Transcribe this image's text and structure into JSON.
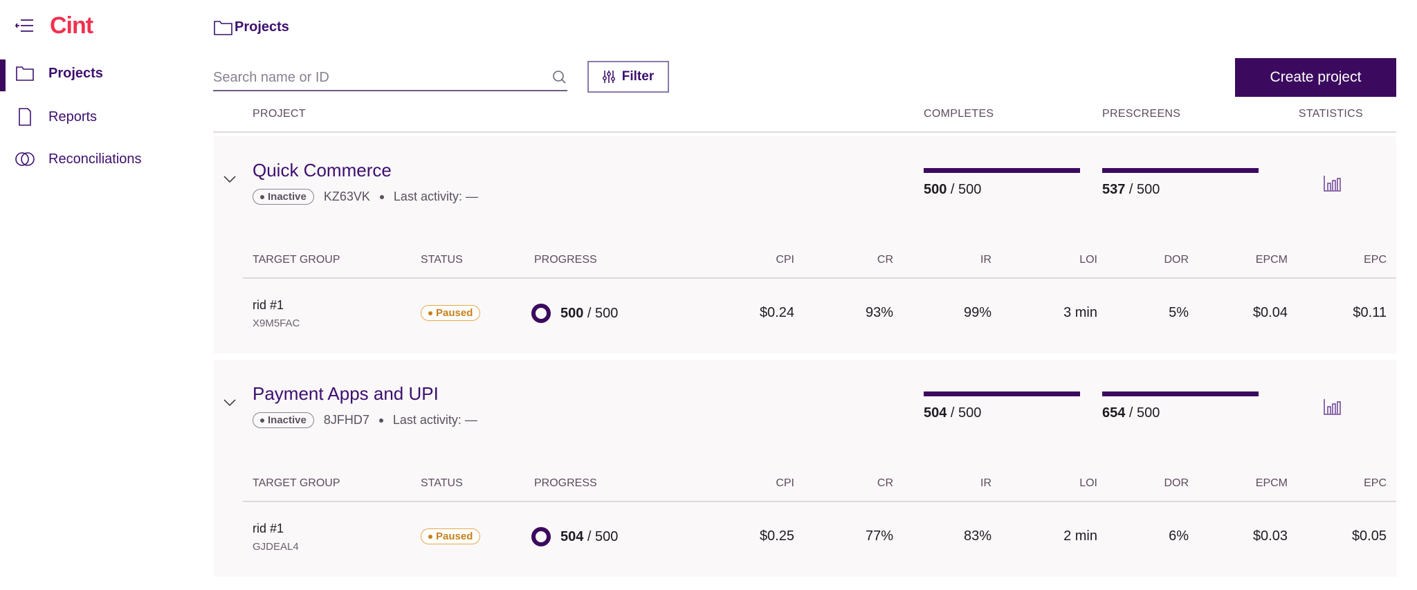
{
  "app": {
    "logo": "Cint",
    "page_title": "Projects"
  },
  "sidebar": {
    "items": [
      {
        "label": "Projects",
        "icon": "folder-icon",
        "active": true
      },
      {
        "label": "Reports",
        "icon": "document-icon"
      },
      {
        "label": "Reconciliations",
        "icon": "overlap-circles-icon"
      }
    ]
  },
  "toolbar": {
    "search_placeholder": "Search name or ID",
    "search_value": "",
    "filter_label": "Filter",
    "create_label": "Create project"
  },
  "columns": {
    "project": "PROJECT",
    "completes": "COMPLETES",
    "prescreens": "PRESCREENS",
    "statistics": "STATISTICS"
  },
  "sub_columns": {
    "target_group": "TARGET GROUP",
    "status": "STATUS",
    "progress": "PROGRESS",
    "cpi": "CPI",
    "cr": "CR",
    "ir": "IR",
    "loi": "LOI",
    "dor": "DOR",
    "epcm": "EPCM",
    "epc": "EPC"
  },
  "colors": {
    "accent": "#3b0a5f",
    "logo": "#f0314f",
    "paused": "#c7801a"
  },
  "projects": [
    {
      "name": "Quick Commerce",
      "status": "Inactive",
      "id": "KZ63VK",
      "last_activity": "Last activity: —",
      "completes": {
        "done": "500",
        "target": "500",
        "sep": " / "
      },
      "prescreens": {
        "done": "537",
        "target": "500",
        "sep": " / "
      },
      "groups": [
        {
          "name": "rid #1",
          "id": "X9M5FAC",
          "status": "Paused",
          "progress_done": "500",
          "progress_target": "500",
          "sep": " / ",
          "cpi": "$0.24",
          "cr": "93%",
          "ir": "99%",
          "loi": "3 min",
          "dor": "5%",
          "epcm": "$0.04",
          "epc": "$0.11"
        }
      ]
    },
    {
      "name": "Payment Apps and UPI",
      "status": "Inactive",
      "id": "8JFHD7",
      "last_activity": "Last activity: —",
      "completes": {
        "done": "504",
        "target": "500",
        "sep": " / "
      },
      "prescreens": {
        "done": "654",
        "target": "500",
        "sep": " / "
      },
      "groups": [
        {
          "name": "rid #1",
          "id": "GJDEAL4",
          "status": "Paused",
          "progress_done": "504",
          "progress_target": "500",
          "sep": " / ",
          "cpi": "$0.25",
          "cr": "77%",
          "ir": "83%",
          "loi": "2 min",
          "dor": "6%",
          "epcm": "$0.03",
          "epc": "$0.05"
        }
      ]
    }
  ]
}
